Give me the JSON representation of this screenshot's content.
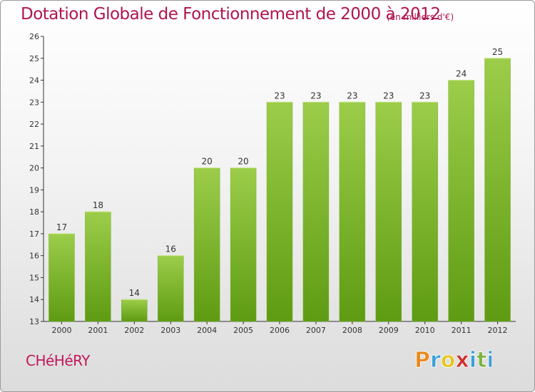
{
  "header": {
    "title": "Dotation Globale de Fonctionnement de 2000 à 2012",
    "unit_note": "(en milliers d'€)"
  },
  "footer": {
    "commune": "CHéHéRY",
    "logo_text": "Proxiti"
  },
  "colors": {
    "title": "#b0144f",
    "bar_top": "#9ccd4a",
    "bar_bottom": "#5e9b12",
    "logo_p": "#e98a1e",
    "logo_r": "#3aa0d8",
    "logo_o": "#e6c51d",
    "logo_x": "#d12e2e",
    "logo_i": "#3aa0d8",
    "logo_t": "#7cb342"
  },
  "chart_data": {
    "type": "bar",
    "title": "Dotation Globale de Fonctionnement de 2000 à 2012",
    "subtitle": "(en milliers d'€)",
    "categories": [
      "2000",
      "2001",
      "2002",
      "2003",
      "2004",
      "2005",
      "2006",
      "2007",
      "2008",
      "2009",
      "2010",
      "2011",
      "2012"
    ],
    "values": [
      17,
      18,
      14,
      16,
      20,
      20,
      23,
      23,
      23,
      23,
      23,
      24,
      25
    ],
    "ylim": [
      13,
      26
    ],
    "yticks": [
      13,
      14,
      15,
      16,
      17,
      18,
      19,
      20,
      21,
      22,
      23,
      24,
      25,
      26
    ],
    "grid": false,
    "xlabel": "",
    "ylabel": ""
  }
}
